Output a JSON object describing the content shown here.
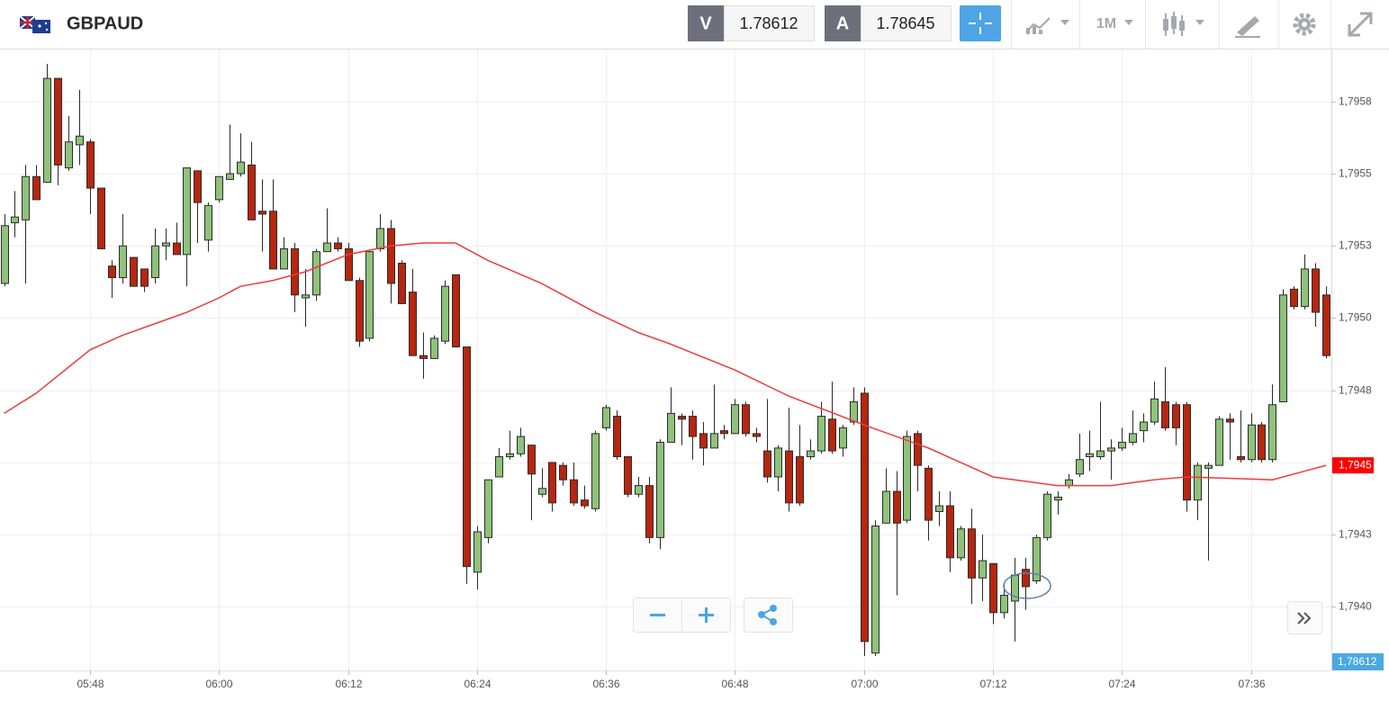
{
  "header": {
    "symbol": "GBPAUD",
    "bid_label": "V",
    "bid": "1.78612",
    "ask_label": "A",
    "ask": "1.78645",
    "timeframe": "1M"
  },
  "chart_data": {
    "type": "candlestick",
    "up_color": "#8fc27a",
    "down_color": "#b7260f",
    "outline_color": "#2a2a2a",
    "grid": true,
    "ylim": [
      1.79378,
      1.79593
    ],
    "yticks": [
      {
        "value": 1.79575,
        "label": "1,7958"
      },
      {
        "value": 1.7955,
        "label": "1,7955"
      },
      {
        "value": 1.79525,
        "label": "1,7953"
      },
      {
        "value": 1.795,
        "label": "1,7950"
      },
      {
        "value": 1.79475,
        "label": "1,7948"
      },
      {
        "value": 1.7945,
        "label": "1,7945"
      },
      {
        "value": 1.79425,
        "label": "1,7943"
      },
      {
        "value": 1.794,
        "label": "1,7940"
      }
    ],
    "categories": [
      null,
      null,
      null,
      null,
      null,
      null,
      null,
      null,
      "05:48",
      null,
      null,
      null,
      null,
      null,
      null,
      null,
      null,
      null,
      null,
      null,
      "06:00",
      null,
      null,
      null,
      null,
      null,
      null,
      null,
      null,
      null,
      null,
      null,
      "06:12",
      null,
      null,
      null,
      null,
      null,
      null,
      null,
      null,
      null,
      null,
      null,
      "06:24",
      null,
      null,
      null,
      null,
      null,
      null,
      null,
      null,
      null,
      null,
      null,
      "06:36",
      null,
      null,
      null,
      null,
      null,
      null,
      null,
      null,
      null,
      null,
      null,
      "06:48",
      null,
      null,
      null,
      null,
      null,
      null,
      null,
      null,
      null,
      null,
      null,
      "07:00",
      null,
      null,
      null,
      null,
      null,
      null,
      null,
      null,
      null,
      null,
      null,
      "07:12",
      null,
      null,
      null,
      null,
      null,
      null,
      null,
      null,
      null,
      null,
      null,
      "07:24",
      null,
      null,
      null,
      null,
      null,
      null,
      null,
      null,
      null,
      null,
      null,
      "07:36",
      null,
      null,
      null,
      null,
      null,
      null,
      null
    ],
    "open": [
      1.79512,
      1.79533,
      1.79534,
      1.79549,
      1.79547,
      1.79583,
      1.79552,
      1.7956,
      1.79561,
      1.79545,
      1.79518,
      1.79514,
      1.79521,
      1.79517,
      1.79514,
      1.79525,
      1.79526,
      1.79522,
      1.79551,
      1.79527,
      1.79541,
      1.79548,
      1.7955,
      1.79553,
      1.79537,
      1.79537,
      1.79517,
      1.79524,
      1.79507,
      1.79508,
      1.79523,
      1.79526,
      1.79524,
      1.79513,
      1.79493,
      1.79524,
      1.79531,
      1.79519,
      1.79509,
      1.79487,
      1.79486,
      1.79492,
      1.79515,
      1.7949,
      1.79412,
      1.79424,
      1.79445,
      1.79452,
      1.79453,
      1.79456,
      1.79439,
      1.7945,
      1.79449,
      1.79444,
      1.79437,
      1.79434,
      1.79462,
      1.79466,
      1.79452,
      1.79439,
      1.79442,
      1.79424,
      1.79457,
      1.79466,
      1.79466,
      1.7946,
      1.79455,
      1.79461,
      1.7946,
      1.7947,
      1.7946,
      1.79454,
      1.79445,
      1.79454,
      1.79452,
      1.79452,
      1.79454,
      1.79465,
      1.79455,
      1.79464,
      1.79474,
      1.79384,
      1.79429,
      1.7944,
      1.7943,
      1.7946,
      1.79448,
      1.79433,
      1.79435,
      1.79417,
      1.79427,
      1.7941,
      1.79415,
      1.79398,
      1.79402,
      1.79413,
      1.79409,
      1.79424,
      1.79437,
      1.79442,
      1.79446,
      1.79452,
      1.79452,
      1.79454,
      1.79455,
      1.79457,
      1.79461,
      1.79464,
      1.79471,
      1.7947,
      1.7947,
      1.79437,
      1.79448,
      1.79449,
      1.79465,
      1.79452,
      1.79451,
      1.79463,
      1.79451,
      1.79471,
      1.7951,
      1.79504,
      1.79517,
      1.79508
    ],
    "high": [
      1.79536,
      1.79544,
      1.79553,
      1.79553,
      1.79588,
      1.79583,
      1.7957,
      1.79579,
      1.79562,
      1.79545,
      1.7952,
      1.79536,
      1.79521,
      1.79517,
      1.79531,
      1.79531,
      1.79533,
      1.79552,
      1.79551,
      1.7954,
      1.79549,
      1.79567,
      1.79564,
      1.79561,
      1.79548,
      1.79548,
      1.79528,
      1.79526,
      1.79517,
      1.79524,
      1.79538,
      1.79528,
      1.79526,
      1.79514,
      1.79523,
      1.79536,
      1.79534,
      1.7952,
      1.79517,
      1.79495,
      1.79494,
      1.79513,
      1.79515,
      1.7949,
      1.79428,
      1.79444,
      1.79455,
      1.79461,
      1.79462,
      1.79456,
      1.79448,
      1.7945,
      1.7945,
      1.7945,
      1.79442,
      1.79461,
      1.7947,
      1.79468,
      1.79452,
      1.79445,
      1.79445,
      1.79458,
      1.79476,
      1.79467,
      1.79468,
      1.79464,
      1.79477,
      1.79463,
      1.79472,
      1.79471,
      1.79462,
      1.79472,
      1.79456,
      1.79469,
      1.79463,
      1.79458,
      1.79471,
      1.79478,
      1.79463,
      1.79476,
      1.79476,
      1.7943,
      1.79448,
      1.79447,
      1.79461,
      1.79461,
      1.79449,
      1.7944,
      1.7944,
      1.79428,
      1.79434,
      1.79425,
      1.79415,
      1.79408,
      1.79417,
      1.79417,
      1.79425,
      1.7944,
      1.7944,
      1.79446,
      1.7946,
      1.79461,
      1.79471,
      1.79458,
      1.79462,
      1.79468,
      1.79467,
      1.79478,
      1.79483,
      1.79471,
      1.79471,
      1.7945,
      1.7945,
      1.79466,
      1.79467,
      1.79468,
      1.79467,
      1.79464,
      1.79477,
      1.7951,
      1.79511,
      1.79522,
      1.79519,
      1.79511
    ],
    "low": [
      1.79511,
      1.79528,
      1.79512,
      1.79541,
      1.79547,
      1.79546,
      1.79551,
      1.79553,
      1.79536,
      1.79524,
      1.79507,
      1.79512,
      1.79511,
      1.79509,
      1.79512,
      1.7952,
      1.79522,
      1.79511,
      1.79526,
      1.79523,
      1.7954,
      1.79548,
      1.79549,
      1.79534,
      1.79523,
      1.79517,
      1.79517,
      1.79502,
      1.79497,
      1.79506,
      1.79523,
      1.79523,
      1.79513,
      1.7949,
      1.79492,
      1.79523,
      1.79505,
      1.79505,
      1.79487,
      1.79479,
      1.79486,
      1.79491,
      1.7949,
      1.79408,
      1.79406,
      1.79422,
      1.79445,
      1.79451,
      1.79452,
      1.7943,
      1.79438,
      1.79433,
      1.79442,
      1.79435,
      1.79434,
      1.79433,
      1.79461,
      1.79451,
      1.79438,
      1.79438,
      1.79422,
      1.7942,
      1.79457,
      1.79456,
      1.79451,
      1.79449,
      1.79455,
      1.79458,
      1.7946,
      1.79459,
      1.79457,
      1.79443,
      1.7944,
      1.79433,
      1.79435,
      1.79451,
      1.79453,
      1.79453,
      1.79452,
      1.79463,
      1.79383,
      1.79383,
      1.79429,
      1.79404,
      1.79429,
      1.7944,
      1.79423,
      1.79428,
      1.79412,
      1.79416,
      1.79401,
      1.79402,
      1.79394,
      1.79396,
      1.79388,
      1.79399,
      1.79408,
      1.79423,
      1.79432,
      1.79441,
      1.79445,
      1.79447,
      1.79451,
      1.79444,
      1.79454,
      1.79456,
      1.79457,
      1.79463,
      1.79461,
      1.79456,
      1.79433,
      1.7943,
      1.79416,
      1.79449,
      1.79451,
      1.7945,
      1.7945,
      1.7945,
      1.7945,
      1.79471,
      1.79503,
      1.79503,
      1.79497,
      1.79486
    ],
    "close": [
      1.79532,
      1.79535,
      1.79549,
      1.79541,
      1.79583,
      1.79553,
      1.79561,
      1.79563,
      1.79545,
      1.79524,
      1.79514,
      1.79525,
      1.79511,
      1.79511,
      1.79525,
      1.79526,
      1.79522,
      1.79552,
      1.7954,
      1.79539,
      1.79549,
      1.7955,
      1.79554,
      1.79534,
      1.79536,
      1.79517,
      1.79524,
      1.79508,
      1.79508,
      1.79523,
      1.79526,
      1.79524,
      1.79513,
      1.79492,
      1.79523,
      1.79531,
      1.79512,
      1.79505,
      1.79487,
      1.79486,
      1.79493,
      1.79511,
      1.7949,
      1.79414,
      1.79426,
      1.79444,
      1.79452,
      1.79453,
      1.79459,
      1.79446,
      1.79441,
      1.79436,
      1.79444,
      1.79436,
      1.79435,
      1.7946,
      1.79469,
      1.79452,
      1.79439,
      1.79442,
      1.79424,
      1.79457,
      1.79467,
      1.79465,
      1.79459,
      1.79455,
      1.7946,
      1.7946,
      1.7947,
      1.7946,
      1.79459,
      1.79445,
      1.79455,
      1.79436,
      1.79436,
      1.79454,
      1.79466,
      1.79454,
      1.79462,
      1.79471,
      1.79388,
      1.79428,
      1.7944,
      1.79429,
      1.79459,
      1.79449,
      1.7943,
      1.79435,
      1.79417,
      1.79427,
      1.7941,
      1.79416,
      1.79398,
      1.79404,
      1.79411,
      1.79407,
      1.79424,
      1.79439,
      1.79438,
      1.79444,
      1.79451,
      1.79453,
      1.79454,
      1.79455,
      1.79457,
      1.7946,
      1.79464,
      1.79472,
      1.79462,
      1.79462,
      1.79437,
      1.79449,
      1.79449,
      1.79465,
      1.79464,
      1.79451,
      1.79463,
      1.79451,
      1.7947,
      1.79508,
      1.79504,
      1.79517,
      1.79502,
      1.79487
    ],
    "ma": {
      "color": "#f03a3a",
      "x": [
        0,
        3,
        8,
        11,
        14,
        17,
        20,
        22,
        25,
        28,
        32,
        36,
        39,
        42,
        45,
        50,
        55,
        59,
        62,
        66,
        68,
        73,
        80,
        86,
        89,
        92,
        98,
        103,
        107,
        110,
        118,
        121,
        123
      ],
      "values": [
        1.79467,
        1.79474,
        1.79489,
        1.79494,
        1.79498,
        1.79502,
        1.79507,
        1.79511,
        1.79513,
        1.79516,
        1.79522,
        1.79525,
        1.79526,
        1.79526,
        1.7952,
        1.79512,
        1.79502,
        1.79495,
        1.79491,
        1.79485,
        1.79482,
        1.79473,
        1.79463,
        1.79455,
        1.7945,
        1.79445,
        1.79442,
        1.79442,
        1.79444,
        1.79445,
        1.79444,
        1.79447,
        1.79449
      ]
    },
    "ma_label": "1,7945",
    "price_label": "1,78612"
  }
}
